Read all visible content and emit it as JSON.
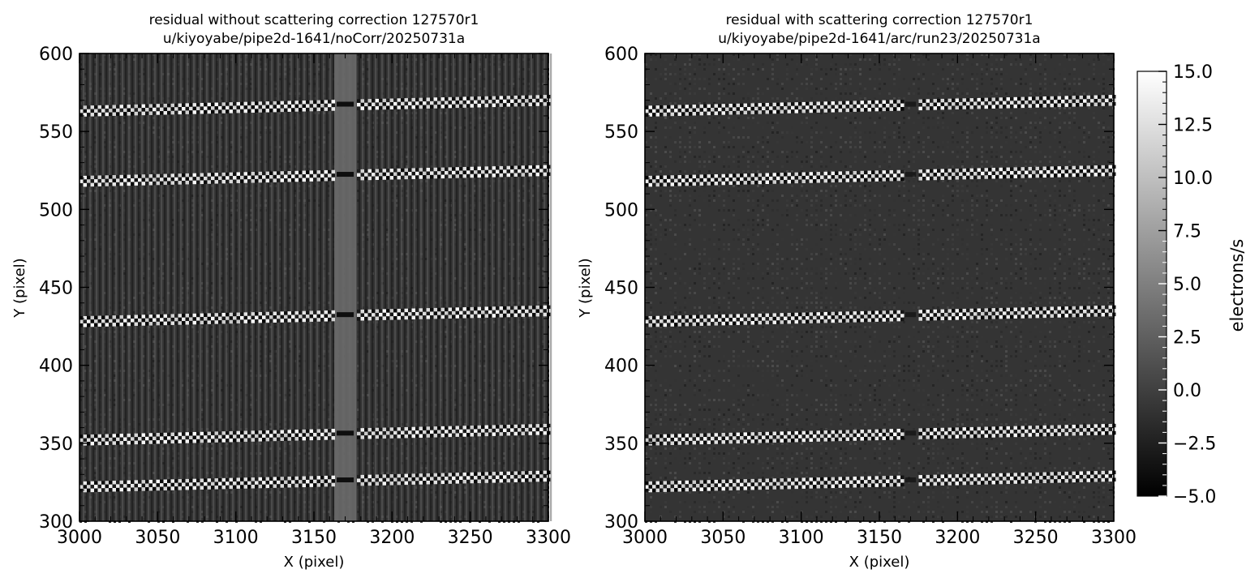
{
  "chart_data": [
    {
      "type": "heatmap",
      "title": "residual without scattering correction 127570r1",
      "subtitle": "u/kiyoyabe/pipe2d-1641/noCorr/20250731a",
      "xlabel": "X (pixel)",
      "ylabel": "Y (pixel)",
      "xlim": [
        3000,
        3300
      ],
      "ylim": [
        300,
        600
      ],
      "x_ticks": [
        3000,
        3050,
        3100,
        3150,
        3200,
        3250,
        3300
      ],
      "y_ticks": [
        300,
        350,
        400,
        450,
        500,
        550,
        600
      ],
      "x_tick_labels": [
        "3000",
        "3050",
        "3100",
        "3150",
        "3200",
        "3250",
        "3300"
      ],
      "y_tick_labels": [
        "300",
        "350",
        "400",
        "450",
        "500",
        "550",
        "600"
      ],
      "trace_rows": [
        {
          "y_left": 563,
          "y_right": 570
        },
        {
          "y_left": 518,
          "y_right": 525
        },
        {
          "y_left": 428,
          "y_right": 435
        },
        {
          "y_left": 352,
          "y_right": 359
        },
        {
          "y_left": 322,
          "y_right": 329
        }
      ],
      "gap_x": [
        3163,
        3177
      ],
      "vertical_striping": true,
      "colormap": "gray",
      "vmin": -5.0,
      "vmax": 15.0
    },
    {
      "type": "heatmap",
      "title": "residual with scattering correction 127570r1",
      "subtitle": "u/kiyoyabe/pipe2d-1641/arc/run23/20250731a",
      "xlabel": "X (pixel)",
      "ylabel": "Y (pixel)",
      "xlim": [
        3000,
        3300
      ],
      "ylim": [
        300,
        600
      ],
      "x_ticks": [
        3000,
        3050,
        3100,
        3150,
        3200,
        3250,
        3300
      ],
      "y_ticks": [
        300,
        350,
        400,
        450,
        500,
        550,
        600
      ],
      "x_tick_labels": [
        "3000",
        "3050",
        "3100",
        "3150",
        "3200",
        "3250",
        "3300"
      ],
      "y_tick_labels": [
        "300",
        "350",
        "400",
        "450",
        "500",
        "550",
        "600"
      ],
      "trace_rows": [
        {
          "y_left": 563,
          "y_right": 570
        },
        {
          "y_left": 518,
          "y_right": 525
        },
        {
          "y_left": 428,
          "y_right": 435
        },
        {
          "y_left": 352,
          "y_right": 359
        },
        {
          "y_left": 322,
          "y_right": 329
        }
      ],
      "gap_x": [
        3165,
        3175
      ],
      "vertical_striping": false,
      "colormap": "gray",
      "vmin": -5.0,
      "vmax": 15.0
    }
  ],
  "colorbar": {
    "label": "electrons/s",
    "min": -5.0,
    "max": 15.0,
    "ticks": [
      15.0,
      12.5,
      10.0,
      7.5,
      5.0,
      2.5,
      0.0,
      -2.5,
      -5.0
    ],
    "tick_labels": [
      "15.0",
      "12.5",
      "10.0",
      "7.5",
      "5.0",
      "2.5",
      "0.0",
      "−2.5",
      "−5.0"
    ],
    "colormap": "gray"
  },
  "colors": {
    "background": "#ffffff",
    "low": "#000000",
    "high": "#ffffff"
  }
}
